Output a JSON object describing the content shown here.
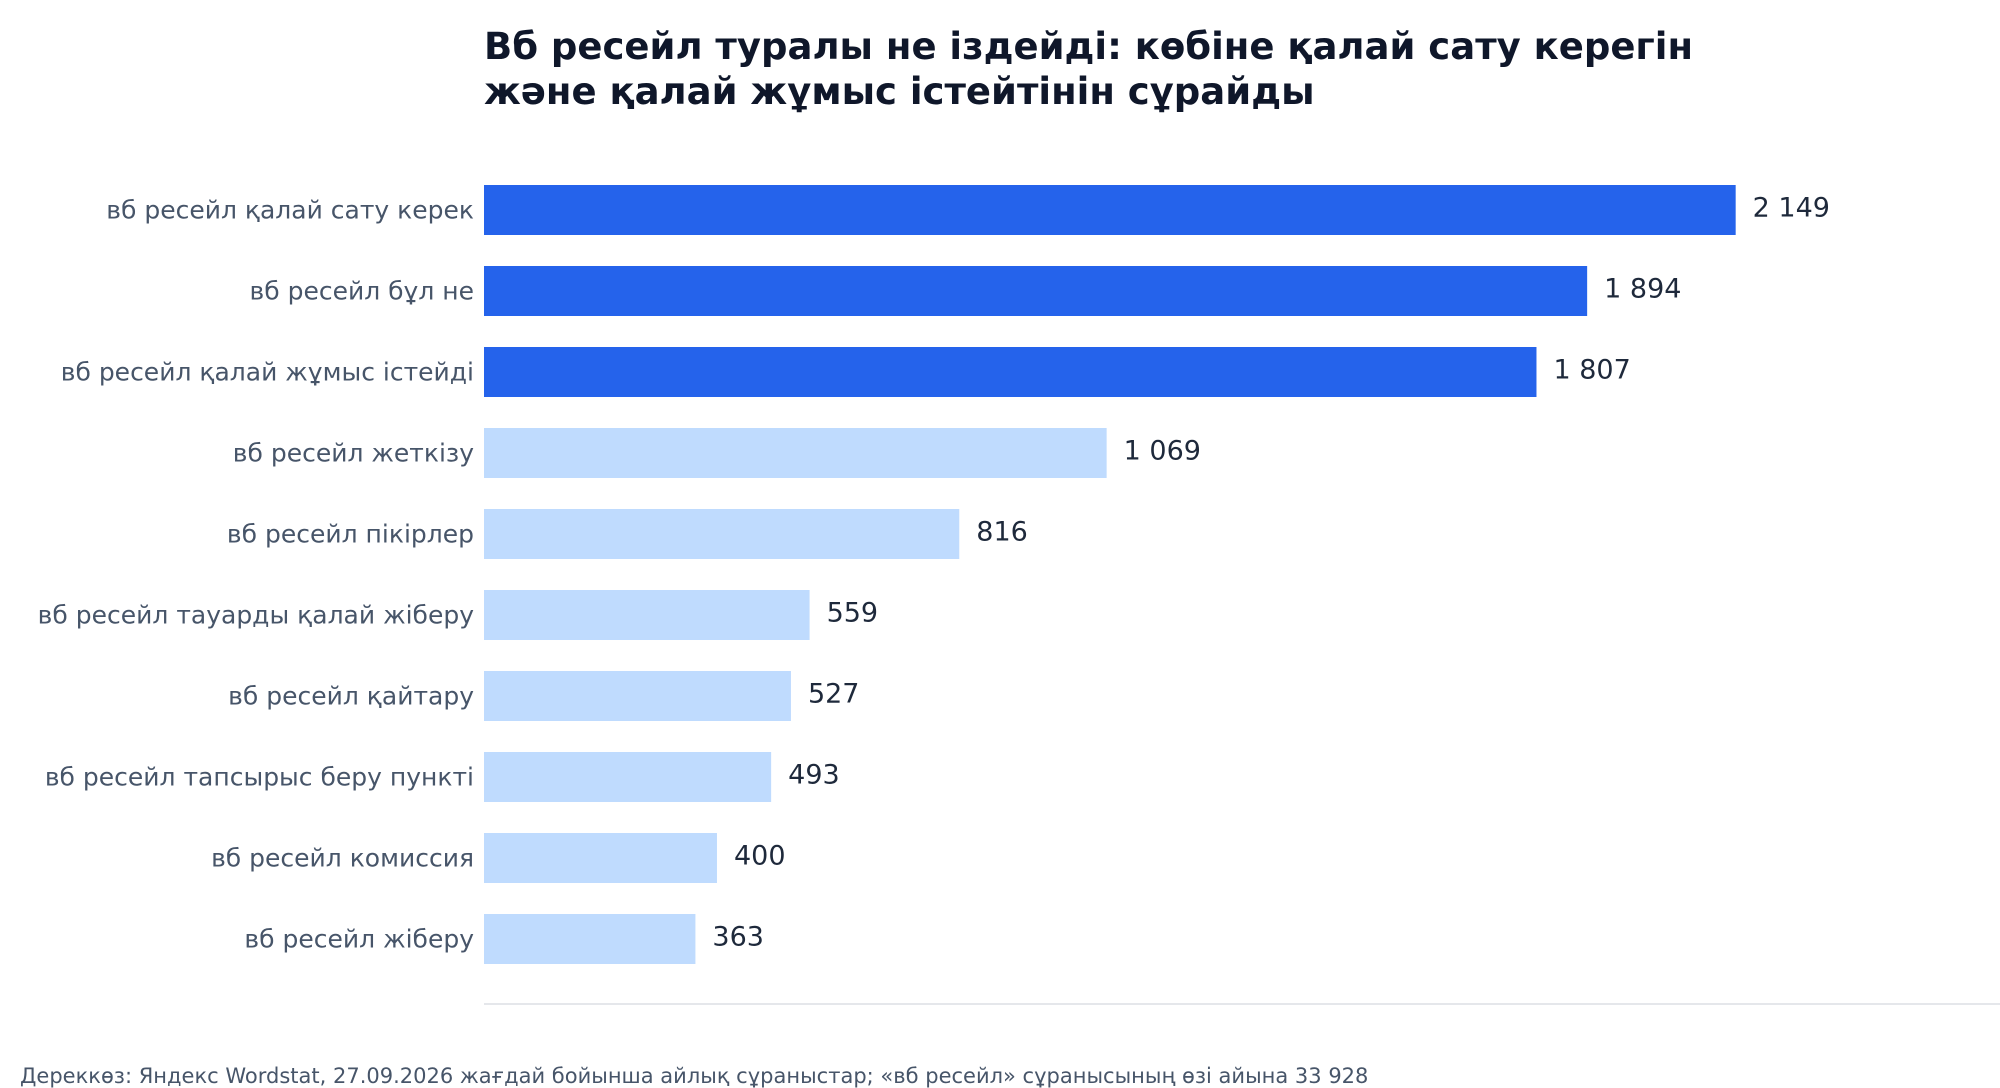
{
  "chart_data": {
    "type": "bar",
    "orientation": "horizontal",
    "title_lines": [
      "Вб ресейл туралы не іздейді: көбіне қалай сату керегін",
      "және қалай жұмыс істейтінін сұрайды"
    ],
    "xlabel": "",
    "ylabel": "",
    "grid": false,
    "legend": "none",
    "xlim": [
      0,
      2620
    ],
    "categories": [
      "вб ресейл қалай сату керек",
      "вб ресейл бұл не",
      "вб ресейл қалай жұмыс істейді",
      "вб ресейл жеткізу",
      "вб ресейл пікірлер",
      "вб ресейл тауарды қалай жіберу",
      "вб ресейл қайтару",
      "вб ресейл тапсырыс беру пункті",
      "вб ресейл комиссия",
      "вб ресейл жіберу"
    ],
    "values": [
      2149,
      1894,
      1807,
      1069,
      816,
      559,
      527,
      493,
      400,
      363
    ],
    "value_labels": [
      "2 149",
      "1 894",
      "1 807",
      "1 069",
      "816",
      "559",
      "527",
      "493",
      "400",
      "363"
    ],
    "highlighted": [
      true,
      true,
      true,
      false,
      false,
      false,
      false,
      false,
      false,
      false
    ],
    "colors": {
      "highlight": "#2563eb",
      "base": "#bfdbfe",
      "category_label": "#475569",
      "value_label": "#1e293b",
      "axis_line": "#e5e7eb"
    }
  },
  "footer": {
    "source": "Дереккөз: Яндекс Wordstat, 27.09.2026 жағдай бойынша айлық сұраныстар; «вб ресейл» сұранысының өзі айына 33 928"
  }
}
